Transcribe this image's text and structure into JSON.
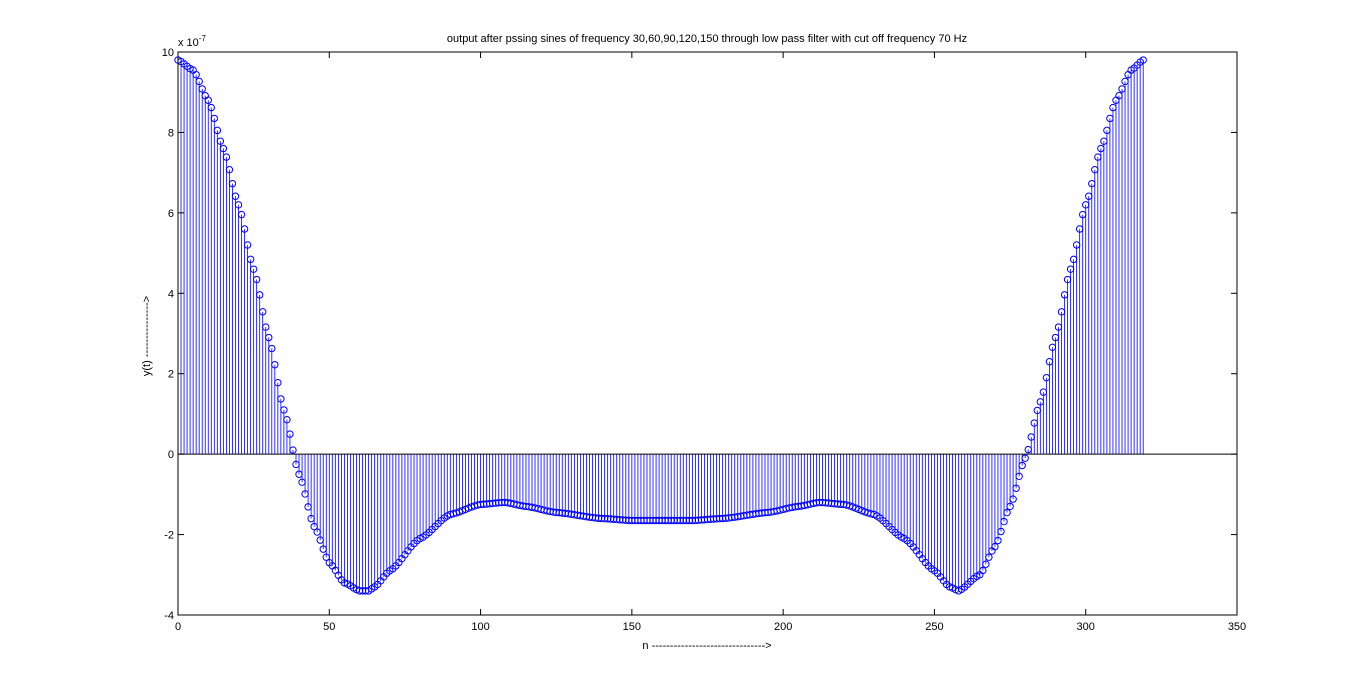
{
  "chart_data": {
    "type": "stem",
    "title": "output after pssing sines of frequency 30,60,90,120,150 through low pass filter with cut off frequency 70 Hz",
    "xlabel": "n ------------------------------->",
    "ylabel": "y(t) --------------->",
    "y_exponent_label": "x 10",
    "y_exponent_power": "-7",
    "xlim": [
      0,
      350
    ],
    "ylim": [
      -4,
      10
    ],
    "x_ticks": [
      0,
      50,
      100,
      150,
      200,
      250,
      300,
      350
    ],
    "y_ticks": [
      -4,
      -2,
      0,
      2,
      4,
      6,
      8,
      10
    ],
    "x_tick_labels": [
      "0",
      "50",
      "100",
      "150",
      "200",
      "250",
      "300",
      "350"
    ],
    "y_tick_labels": [
      "-4",
      "-2",
      "0",
      "2",
      "4",
      "6",
      "8",
      "10"
    ],
    "n_range": [
      0,
      319
    ],
    "y_scale": 1e-07,
    "keypoints": {
      "x": [
        0,
        5,
        10,
        15,
        20,
        25,
        30,
        35,
        40,
        45,
        50,
        55,
        60,
        63,
        65,
        70,
        80,
        90,
        100,
        108,
        115,
        125,
        140,
        150,
        160,
        170,
        180,
        195,
        205,
        212,
        220,
        230,
        240,
        250,
        255,
        258,
        265,
        270,
        275,
        280,
        285,
        290,
        295,
        300,
        305,
        310,
        315,
        319
      ],
      "y": [
        9.8,
        9.55,
        8.8,
        7.6,
        6.2,
        4.6,
        2.9,
        1.1,
        -0.5,
        -1.8,
        -2.7,
        -3.2,
        -3.4,
        -3.4,
        -3.3,
        -2.9,
        -2.1,
        -1.5,
        -1.25,
        -1.2,
        -1.3,
        -1.45,
        -1.6,
        -1.65,
        -1.65,
        -1.65,
        -1.6,
        -1.45,
        -1.3,
        -1.2,
        -1.25,
        -1.5,
        -2.1,
        -2.9,
        -3.3,
        -3.4,
        -3.0,
        -2.3,
        -1.3,
        -0.1,
        1.3,
        2.9,
        4.6,
        6.2,
        7.6,
        8.8,
        9.55,
        9.8
      ]
    },
    "grid": false,
    "marker": "circle",
    "color": "#0000ff",
    "baseline_color": "#000000"
  }
}
